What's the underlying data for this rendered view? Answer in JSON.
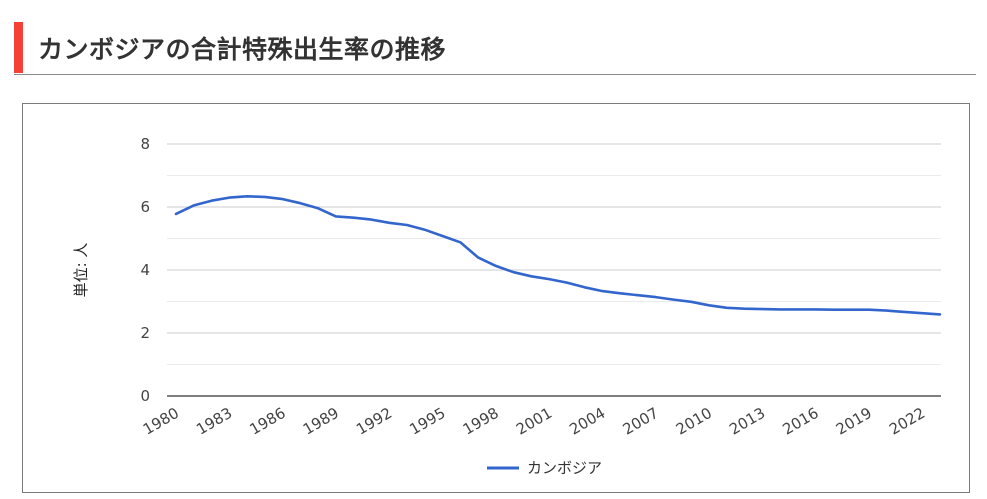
{
  "header": {
    "title": "カンボジアの合計特殊出生率の推移",
    "accent_color": "#f44336"
  },
  "chart_data": {
    "type": "line",
    "ylabel": "単位: 人",
    "ylim": [
      0,
      8
    ],
    "y_ticks": [
      0,
      2,
      4,
      6,
      8
    ],
    "x_tick_labels": [
      "1980",
      "1983",
      "1986",
      "1989",
      "1992",
      "1995",
      "1998",
      "2001",
      "2004",
      "2007",
      "2010",
      "2013",
      "2016",
      "2019",
      "2022"
    ],
    "grid": true,
    "legend_position": "bottom",
    "series": [
      {
        "name": "カンボジア",
        "color": "#3366cc",
        "x": [
          1980,
          1981,
          1982,
          1983,
          1984,
          1985,
          1986,
          1987,
          1988,
          1989,
          1990,
          1991,
          1992,
          1993,
          1994,
          1995,
          1996,
          1997,
          1998,
          1999,
          2000,
          2001,
          2002,
          2003,
          2004,
          2005,
          2006,
          2007,
          2008,
          2009,
          2010,
          2011,
          2012,
          2013,
          2014,
          2015,
          2016,
          2017,
          2018,
          2019,
          2020,
          2021,
          2022,
          2023
        ],
        "values": [
          5.78,
          6.05,
          6.2,
          6.3,
          6.34,
          6.32,
          6.25,
          6.12,
          5.96,
          5.7,
          5.66,
          5.6,
          5.5,
          5.43,
          5.28,
          5.08,
          4.88,
          4.4,
          4.13,
          3.93,
          3.8,
          3.71,
          3.6,
          3.45,
          3.33,
          3.26,
          3.2,
          3.14,
          3.06,
          2.99,
          2.88,
          2.8,
          2.77,
          2.76,
          2.75,
          2.75,
          2.75,
          2.74,
          2.74,
          2.74,
          2.71,
          2.67,
          2.63,
          2.59
        ]
      }
    ]
  }
}
